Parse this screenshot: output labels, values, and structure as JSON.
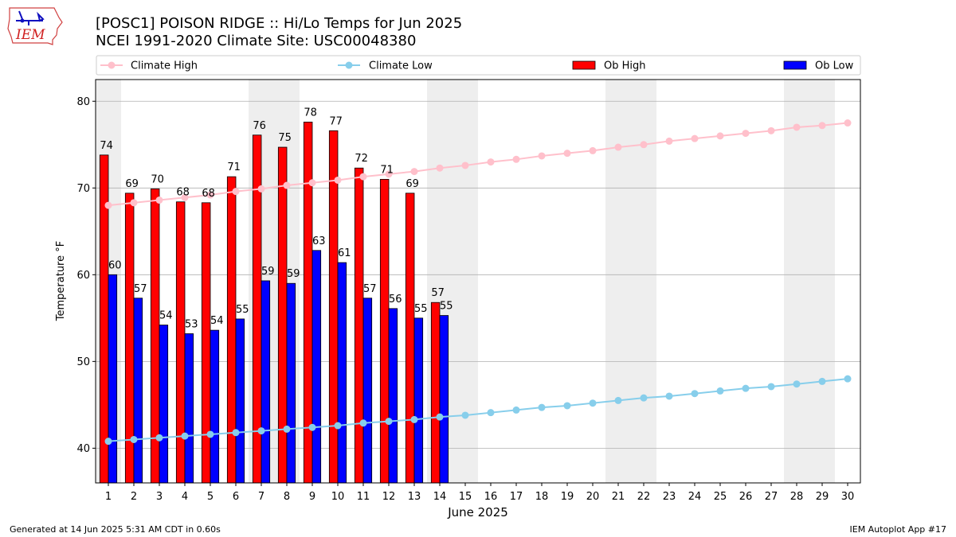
{
  "header": {
    "title_line1": "[POSC1] POISON RIDGE :: Hi/Lo Temps for Jun 2025",
    "title_line2": "NCEI 1991-2020 Climate Site: USC00048380",
    "logo_text": "IEM"
  },
  "footer": {
    "left": "Generated at 14 Jun 2025 5:31 AM CDT in 0.60s",
    "right": "IEM Autoplot App #17"
  },
  "colors": {
    "ob_high": "#ff0000",
    "ob_low": "#0000ff",
    "climate_high": "#ffc0cb",
    "climate_low": "#87ceeb",
    "weekend_shade": "#eeeeee",
    "grid": "#b0b0b0"
  },
  "chart_data": {
    "type": "bar",
    "xlabel": "June 2025",
    "ylabel": "Temperature °F",
    "xlim": [
      0.5,
      30.5
    ],
    "ylim": [
      36,
      82.5
    ],
    "yticks": [
      40,
      50,
      60,
      70,
      80
    ],
    "grid": "horizontal",
    "legend_position": "top",
    "weekend_shaded_days": [
      1,
      7,
      8,
      14,
      15,
      21,
      22,
      28,
      29
    ],
    "days": [
      1,
      2,
      3,
      4,
      5,
      6,
      7,
      8,
      9,
      10,
      11,
      12,
      13,
      14,
      15,
      16,
      17,
      18,
      19,
      20,
      21,
      22,
      23,
      24,
      25,
      26,
      27,
      28,
      29,
      30
    ],
    "series": [
      {
        "name": "Climate High",
        "kind": "line",
        "values": [
          68.0,
          68.3,
          68.6,
          68.9,
          69.2,
          69.6,
          69.9,
          70.3,
          70.6,
          70.9,
          71.3,
          71.6,
          71.9,
          72.3,
          72.6,
          73.0,
          73.3,
          73.7,
          74.0,
          74.3,
          74.7,
          75.0,
          75.4,
          75.7,
          76.0,
          76.3,
          76.6,
          77.0,
          77.2,
          77.5
        ]
      },
      {
        "name": "Climate Low",
        "kind": "line",
        "values": [
          40.8,
          41.0,
          41.2,
          41.4,
          41.6,
          41.8,
          42.0,
          42.2,
          42.4,
          42.6,
          42.9,
          43.1,
          43.3,
          43.6,
          43.8,
          44.1,
          44.4,
          44.7,
          44.9,
          45.2,
          45.5,
          45.8,
          46.0,
          46.3,
          46.6,
          46.9,
          47.1,
          47.4,
          47.7,
          48.0
        ]
      },
      {
        "name": "Ob High",
        "kind": "bar",
        "values": [
          73.8,
          69.4,
          69.9,
          68.4,
          68.3,
          71.3,
          76.1,
          74.7,
          77.6,
          76.6,
          72.3,
          71.0,
          69.4,
          56.8
        ],
        "labels": [
          "74",
          "69",
          "70",
          "68",
          "68",
          "71",
          "76",
          "75",
          "78",
          "77",
          "72",
          "71",
          "69",
          "57"
        ]
      },
      {
        "name": "Ob Low",
        "kind": "bar",
        "values": [
          60.0,
          57.3,
          54.2,
          53.2,
          53.6,
          54.9,
          59.3,
          59.0,
          62.8,
          61.4,
          57.3,
          56.1,
          55.0,
          55.3
        ],
        "labels": [
          "60",
          "57",
          "54",
          "53",
          "54",
          "55",
          "59",
          "59",
          "63",
          "61",
          "57",
          "56",
          "55",
          "55"
        ]
      }
    ]
  }
}
